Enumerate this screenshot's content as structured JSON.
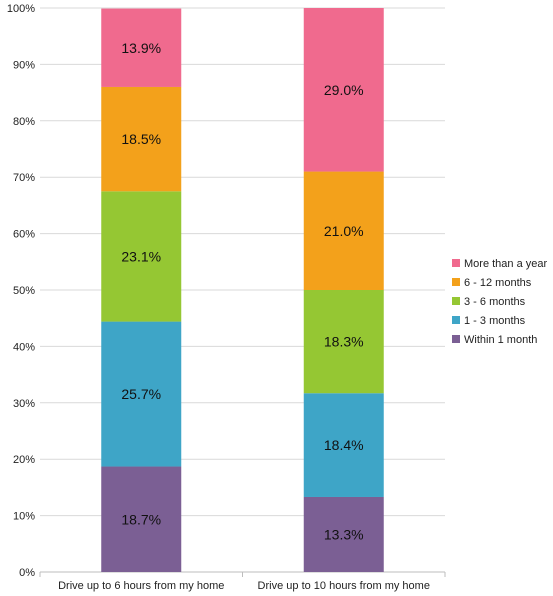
{
  "chart_data": {
    "type": "bar",
    "stacked": true,
    "percent": true,
    "categories": [
      "Drive up to 6 hours from my home",
      "Drive up to 10 hours from my home"
    ],
    "series": [
      {
        "name": "Within 1 month",
        "values": [
          18.7,
          13.3
        ],
        "color": "#7b5f94"
      },
      {
        "name": "1 - 3 months",
        "values": [
          25.7,
          18.4
        ],
        "color": "#3ea5c7"
      },
      {
        "name": "3 - 6 months",
        "values": [
          23.1,
          18.3
        ],
        "color": "#95c733"
      },
      {
        "name": "6 - 12 months",
        "values": [
          18.5,
          21.0
        ],
        "color": "#f3a11b"
      },
      {
        "name": "More than a year",
        "values": [
          13.9,
          29.0
        ],
        "color": "#f06a8e"
      }
    ],
    "data_labels": [
      [
        "18.7%",
        "25.7%",
        "23.1%",
        "18.5%",
        "13.9%"
      ],
      [
        "13.3%",
        "18.4%",
        "18.3%",
        "21.0%",
        "29.0%"
      ]
    ],
    "ylim": [
      0,
      100
    ],
    "yticks": [
      "0%",
      "10%",
      "20%",
      "30%",
      "40%",
      "50%",
      "60%",
      "70%",
      "80%",
      "90%",
      "100%"
    ],
    "grid": true,
    "legend_position": "right"
  }
}
